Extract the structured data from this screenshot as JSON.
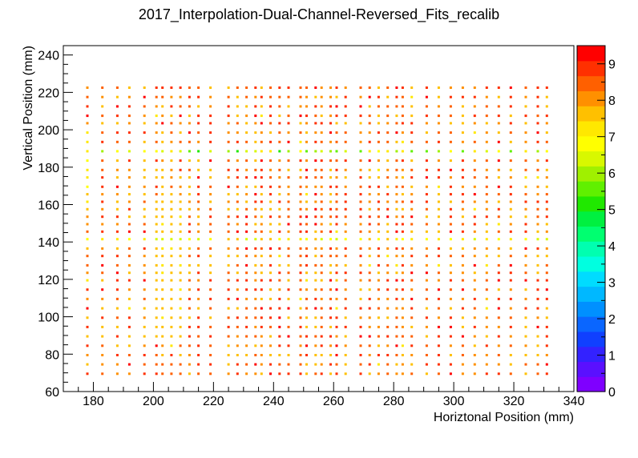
{
  "chart_data": {
    "type": "heatmap",
    "title": "2017_Interpolation-Dual-Channel-Reversed_Fits_recalib",
    "xlabel": "Horiztonal Position (mm)",
    "ylabel": "Vertical Position (mm)",
    "xlim": [
      170,
      340
    ],
    "ylim": [
      60,
      245
    ],
    "x_ticks": [
      "180",
      "200",
      "220",
      "240",
      "260",
      "280",
      "300",
      "320",
      "340"
    ],
    "y_ticks": [
      "60",
      "80",
      "100",
      "120",
      "140",
      "160",
      "180",
      "200",
      "220",
      "240"
    ],
    "z_range": [
      0,
      9.5
    ],
    "z_ticks": [
      "0",
      "1",
      "2",
      "3",
      "4",
      "5",
      "6",
      "7",
      "8",
      "9"
    ],
    "palette": [
      "#7f00ff",
      "#5a10ff",
      "#3322ff",
      "#1040ff",
      "#0a66ff",
      "#0090ff",
      "#00b8ff",
      "#00dcff",
      "#00ffe0",
      "#00ffb0",
      "#00ff70",
      "#00f040",
      "#20e800",
      "#60f000",
      "#a0f000",
      "#d8f800",
      "#ffff00",
      "#ffe800",
      "#ffc000",
      "#ff9000",
      "#ff6000",
      "#ff3000",
      "#ff0000"
    ],
    "x_columns": [
      178,
      183,
      188,
      192,
      197,
      201,
      203,
      206,
      209,
      212,
      215,
      219,
      225,
      228,
      231,
      234,
      236,
      239,
      242,
      245,
      249,
      251,
      254,
      256,
      259,
      261,
      264,
      269,
      272,
      275,
      278,
      281,
      283,
      286,
      291,
      295,
      299,
      303,
      307,
      311,
      315,
      319,
      324,
      328,
      331
    ],
    "y_rows": [
      69.5,
      74.5,
      79.5,
      84.5,
      89.5,
      94.5,
      99.5,
      104.5,
      109.5,
      114.5,
      119.5,
      123.5,
      127.5,
      132.5,
      136.5,
      141.5,
      145.5,
      149.5,
      153.5,
      157.5,
      161.5,
      165.5,
      169.5,
      174.5,
      178.5,
      183.5,
      188.5,
      193.5,
      198.5,
      203.5,
      207.5,
      212.5,
      217.5,
      222.5
    ]
  }
}
